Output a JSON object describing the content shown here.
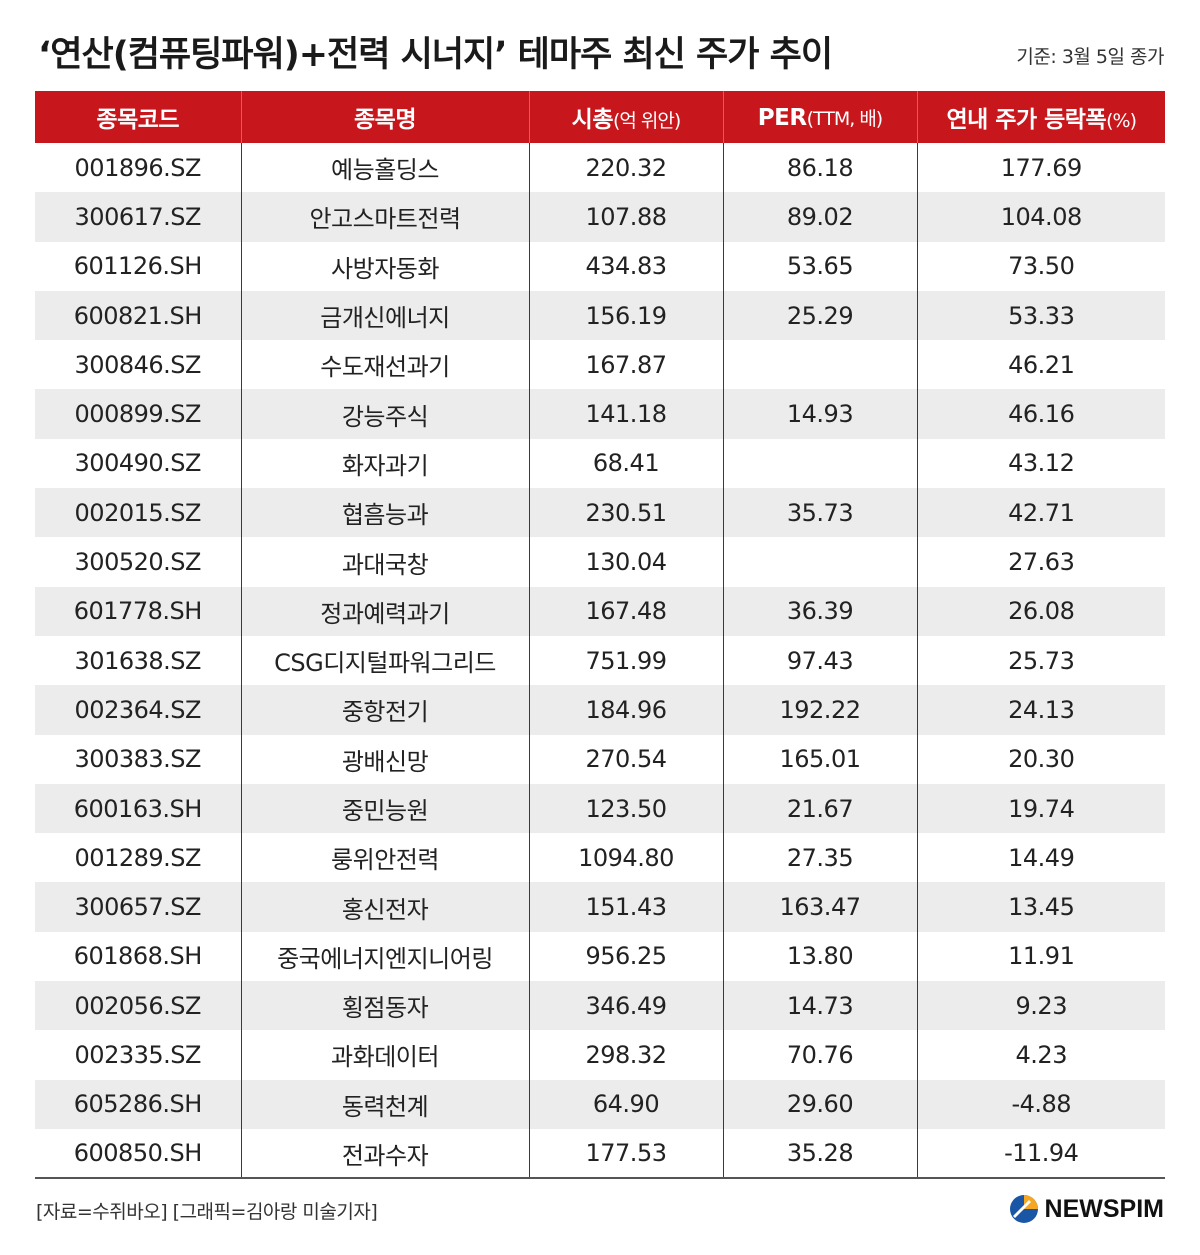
{
  "title": "‘연산(컴퓨팅파워)+전력 시너지’ 테마주 최신 주가 추이",
  "basis": "기준: 3월 5일 종가",
  "headers": {
    "code": "종목코드",
    "name": "종목명",
    "mcap": "시총",
    "mcap_unit": "(억 위안)",
    "per": "PER",
    "per_unit": "(TTM, 배)",
    "change": "연내 주가 등락폭",
    "change_unit": "(%)"
  },
  "rows": [
    {
      "code": "001896.SZ",
      "name": "예능홀딩스",
      "mcap": "220.32",
      "per": "86.18",
      "change": "177.69"
    },
    {
      "code": "300617.SZ",
      "name": "안고스마트전력",
      "mcap": "107.88",
      "per": "89.02",
      "change": "104.08"
    },
    {
      "code": "601126.SH",
      "name": "사방자동화",
      "mcap": "434.83",
      "per": "53.65",
      "change": "73.50"
    },
    {
      "code": "600821.SH",
      "name": "금개신에너지",
      "mcap": "156.19",
      "per": "25.29",
      "change": "53.33"
    },
    {
      "code": "300846.SZ",
      "name": "수도재선과기",
      "mcap": "167.87",
      "per": "",
      "change": "46.21"
    },
    {
      "code": "000899.SZ",
      "name": "강능주식",
      "mcap": "141.18",
      "per": "14.93",
      "change": "46.16"
    },
    {
      "code": "300490.SZ",
      "name": "화자과기",
      "mcap": "68.41",
      "per": "",
      "change": "43.12"
    },
    {
      "code": "002015.SZ",
      "name": "협흠능과",
      "mcap": "230.51",
      "per": "35.73",
      "change": "42.71"
    },
    {
      "code": "300520.SZ",
      "name": "과대국창",
      "mcap": "130.04",
      "per": "",
      "change": "27.63"
    },
    {
      "code": "601778.SH",
      "name": "정과예력과기",
      "mcap": "167.48",
      "per": "36.39",
      "change": "26.08"
    },
    {
      "code": "301638.SZ",
      "name": "CSG디지털파워그리드",
      "mcap": "751.99",
      "per": "97.43",
      "change": "25.73"
    },
    {
      "code": "002364.SZ",
      "name": "중항전기",
      "mcap": "184.96",
      "per": "192.22",
      "change": "24.13"
    },
    {
      "code": "300383.SZ",
      "name": "광배신망",
      "mcap": "270.54",
      "per": "165.01",
      "change": "20.30"
    },
    {
      "code": "600163.SH",
      "name": "중민능원",
      "mcap": "123.50",
      "per": "21.67",
      "change": "19.74"
    },
    {
      "code": "001289.SZ",
      "name": "룽위안전력",
      "mcap": "1094.80",
      "per": "27.35",
      "change": "14.49"
    },
    {
      "code": "300657.SZ",
      "name": "홍신전자",
      "mcap": "151.43",
      "per": "163.47",
      "change": "13.45"
    },
    {
      "code": "601868.SH",
      "name": "중국에너지엔지니어링",
      "mcap": "956.25",
      "per": "13.80",
      "change": "11.91"
    },
    {
      "code": "002056.SZ",
      "name": "횡점동자",
      "mcap": "346.49",
      "per": "14.73",
      "change": "9.23"
    },
    {
      "code": "002335.SZ",
      "name": "과화데이터",
      "mcap": "298.32",
      "per": "70.76",
      "change": "4.23"
    },
    {
      "code": "605286.SH",
      "name": "동력천계",
      "mcap": "64.90",
      "per": "29.60",
      "change": "-4.88"
    },
    {
      "code": "600850.SH",
      "name": "전과수자",
      "mcap": "177.53",
      "per": "35.28",
      "change": "-11.94"
    }
  ],
  "footer": {
    "source": "[자료=수쥐바오] [그래픽=김아랑 미술기자]",
    "logo_text": "NEWSPIM"
  },
  "colors": {
    "header_bg": "#c8171c",
    "stripe_bg": "#ececec",
    "logo_blue": "#1a56a6",
    "logo_orange": "#f5a623"
  },
  "icons": {
    "logo": "newspim-logo-icon"
  }
}
